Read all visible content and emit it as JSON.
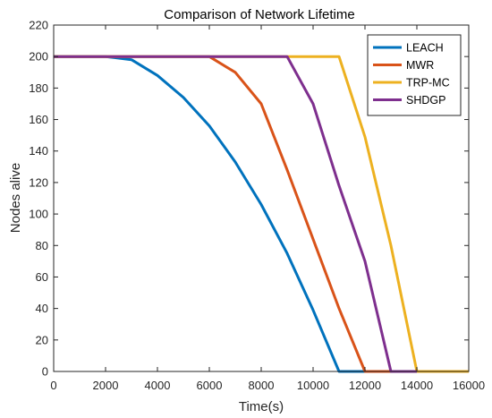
{
  "chart_data": {
    "type": "line",
    "title": "Comparison of Network Lifetime",
    "xlabel": "Time(s)",
    "ylabel": "Nodes alive",
    "xlim": [
      0,
      16000
    ],
    "ylim": [
      0,
      220
    ],
    "xticks": [
      0,
      2000,
      4000,
      6000,
      8000,
      10000,
      12000,
      14000,
      16000
    ],
    "yticks": [
      0,
      20,
      40,
      60,
      80,
      100,
      120,
      140,
      160,
      180,
      200,
      220
    ],
    "grid": false,
    "legend_position": "top-right",
    "series": [
      {
        "name": "LEACH",
        "color": "#0072BD",
        "x": [
          0,
          2000,
          3000,
          4000,
          5000,
          6000,
          7000,
          8000,
          9000,
          10000,
          11000,
          12000
        ],
        "y": [
          200,
          200,
          198,
          188,
          174,
          156,
          133,
          106,
          75,
          39,
          0,
          0
        ]
      },
      {
        "name": "MWR",
        "color": "#D95319",
        "x": [
          0,
          6000,
          7000,
          8000,
          9000,
          10000,
          11000,
          12000,
          13000
        ],
        "y": [
          200,
          200,
          190,
          170,
          128,
          84,
          40,
          0,
          0
        ]
      },
      {
        "name": "TRP-MC",
        "color": "#EDB120",
        "x": [
          0,
          11000,
          12000,
          13000,
          14000,
          16000
        ],
        "y": [
          200,
          200,
          149,
          80,
          0,
          0
        ]
      },
      {
        "name": "SHDGP",
        "color": "#7E2F8E",
        "x": [
          0,
          9000,
          10000,
          11000,
          12000,
          13000,
          14000
        ],
        "y": [
          200,
          200,
          170,
          118,
          70,
          0,
          0
        ]
      }
    ]
  }
}
